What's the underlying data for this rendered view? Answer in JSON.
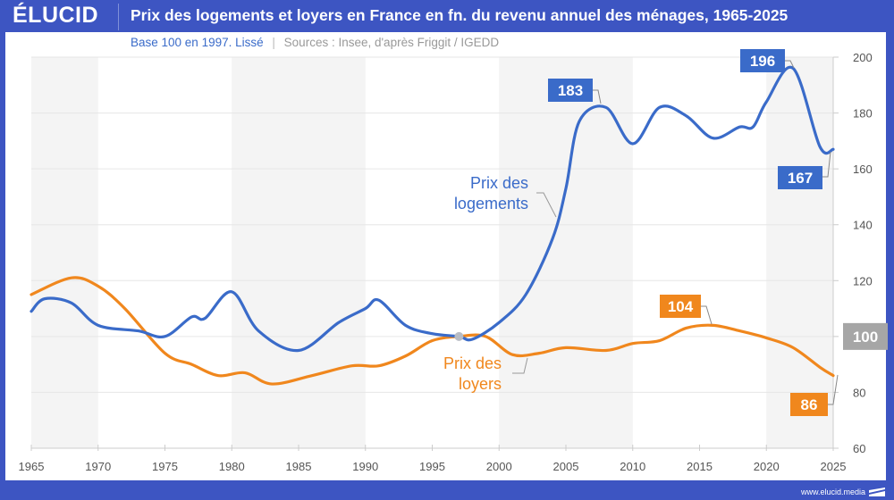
{
  "brand": {
    "logo": "ÉLUCID",
    "footer_url": "www.elucid.media"
  },
  "header": {
    "title": "Prix des logements et loyers en France en fn. du revenu annuel des ménages, 1965-2025"
  },
  "subtitle": {
    "base": "Base 100 en 1997. Lissé",
    "separator": "|",
    "sources": "Sources : Insee, d'après Friggit / IGEDD"
  },
  "colors": {
    "blue": "#3a6bc9",
    "orange": "#f0871d",
    "highlight_grey": "#a6a6a6",
    "brand": "#3d55c2"
  },
  "chart_data": {
    "type": "line",
    "title": "Prix des logements et loyers en France en fn. du revenu annuel des ménages, 1965-2025",
    "subtitle": "Base 100 en 1997. Lissé | Sources : Insee, d'après Friggit / IGEDD",
    "xlabel": "",
    "ylabel": "",
    "xlim": [
      1965,
      2025
    ],
    "ylim": [
      60,
      200
    ],
    "x_ticks": [
      "1965",
      "1970",
      "1975",
      "1980",
      "1985",
      "1990",
      "1995",
      "2000",
      "2005",
      "2010",
      "2015",
      "2020",
      "2025"
    ],
    "y_ticks": [
      "60",
      "80",
      "100",
      "120",
      "140",
      "160",
      "180",
      "200"
    ],
    "y_highlight_tick": "100",
    "y_axis_side": "right",
    "grid": true,
    "shaded_decades": [
      [
        1965,
        1970
      ],
      [
        1980,
        1990
      ],
      [
        2000,
        2010
      ],
      [
        2020,
        2025
      ]
    ],
    "reference_point": {
      "x": 1997,
      "y": 100
    },
    "series": [
      {
        "name": "Prix des logements",
        "label": "Prix des logements",
        "color": "#3a6bc9",
        "x": [
          1965,
          1966,
          1968,
          1970,
          1973,
          1975,
          1977,
          1978,
          1980,
          1982,
          1985,
          1988,
          1990,
          1991,
          1993,
          1995,
          1997,
          1998,
          2000,
          2002,
          2004,
          2005,
          2006,
          2008,
          2010,
          2012,
          2014,
          2016,
          2018,
          2019,
          2020,
          2022,
          2024,
          2025
        ],
        "y": [
          109,
          113.5,
          112,
          104,
          102,
          100,
          107,
          106.5,
          116,
          102,
          95,
          105,
          110,
          113,
          104,
          101,
          100,
          99,
          105,
          115,
          135,
          153,
          177,
          182,
          169,
          182,
          179,
          171,
          175,
          175,
          184,
          196,
          168,
          167
        ],
        "annotations": [
          {
            "x": 2008,
            "y": 183,
            "text": "183"
          },
          {
            "x": 2022,
            "y": 196,
            "text": "196"
          },
          {
            "x": 2025,
            "y": 167,
            "text": "167"
          }
        ]
      },
      {
        "name": "Prix des loyers",
        "label": "Prix des loyers",
        "color": "#f0871d",
        "x": [
          1965,
          1968,
          1970,
          1972,
          1975,
          1977,
          1979,
          1981,
          1983,
          1986,
          1989,
          1991,
          1993,
          1995,
          1997,
          1999,
          2001,
          2003,
          2005,
          2008,
          2010,
          2012,
          2014,
          2016,
          2018,
          2020,
          2022,
          2024,
          2025
        ],
        "y": [
          115,
          121,
          118,
          110,
          94,
          90,
          86,
          87,
          83,
          86,
          89.5,
          89.5,
          93,
          98.5,
          100,
          100,
          93.5,
          94,
          96,
          95,
          97.5,
          98.5,
          103,
          104,
          102,
          99.5,
          96,
          89,
          86
        ],
        "annotations": [
          {
            "x": 2016,
            "y": 104,
            "text": "104"
          },
          {
            "x": 2025,
            "y": 86,
            "text": "86"
          }
        ]
      }
    ]
  }
}
